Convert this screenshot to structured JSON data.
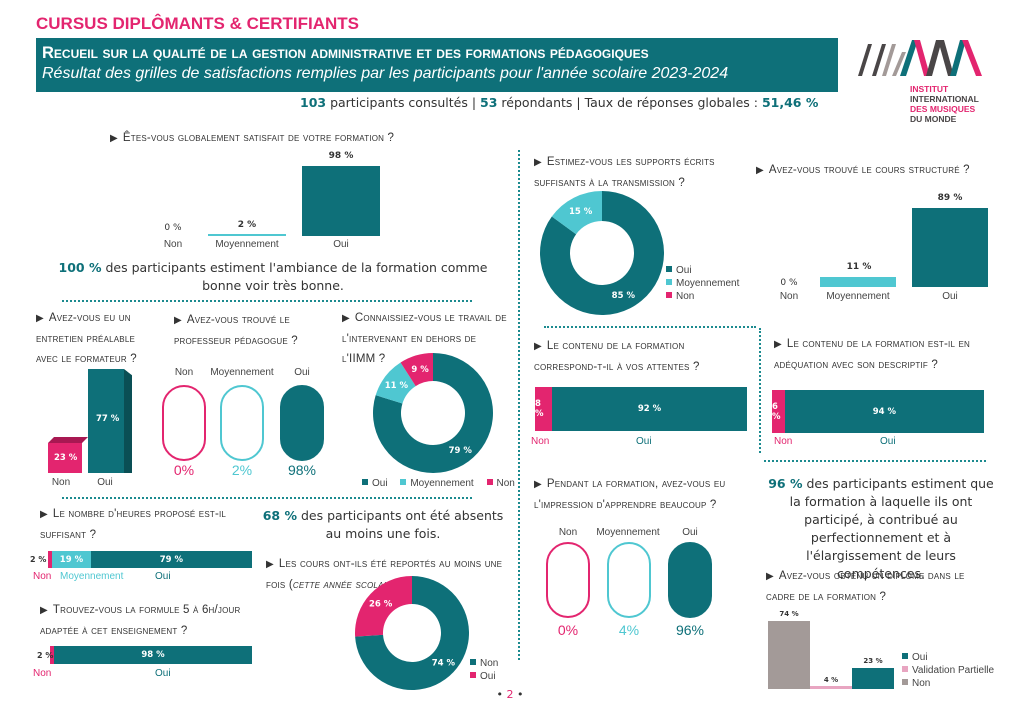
{
  "colors": {
    "teal": "#0e7079",
    "light_teal": "#4fc7d1",
    "pink": "#e3256f",
    "grey": "#a39a98",
    "light_pink": "#e8a5c1",
    "dark_grey": "#4a4647"
  },
  "header": {
    "section_title": "CURSUS DIPLÔMANTS & CERTIFIANTS",
    "banner_title": "Recueil sur la qualité de la gestion administrative et des formations pédagogiques",
    "banner_subtitle": "Résultat des grilles de satisfactions remplies par les participants pour l'année scolaire 2023-2024",
    "summary": {
      "consulted_count": "103",
      "consulted_text": " participants consultés | ",
      "respondents_count": "53",
      "respondents_text": " répondants | Taux de réponses globales : ",
      "rate": "51,46 %"
    }
  },
  "logo": {
    "line1": "INSTITUT",
    "line2": "INTERNATIONAL",
    "line3": "DES MUSIQUES",
    "line4": "DU MONDE"
  },
  "stats": {
    "ambiance_value": "100 %",
    "ambiance_text": " des participants estiment l'ambiance de la formation comme bonne voir très bonne.",
    "absents_value": "68 %",
    "absents_text": " des participants ont été absents au moins une fois.",
    "perfection_value": "96 %",
    "perfection_text": " des participants estiment que la formation à laquelle ils ont participé, à contribué au perfectionnement et à l'élargissement de leurs compétences."
  },
  "page_number": "2",
  "chart_data": [
    {
      "id": "satisfaction",
      "type": "bar",
      "title": "Êtes-vous globalement satisfait de votre formation ?",
      "categories": [
        "Non",
        "Moyennement",
        "Oui"
      ],
      "values": [
        0,
        2,
        98
      ],
      "labels": [
        "0 %",
        "2 %",
        "98 %"
      ],
      "unit": "%"
    },
    {
      "id": "supports",
      "type": "pie",
      "title": "Estimez-vous les supports écrits suffisants à la transmission ?",
      "categories": [
        "Oui",
        "Moyennement",
        "Non"
      ],
      "values": [
        85,
        15,
        0
      ],
      "labels": [
        "85 %",
        "15 %",
        ""
      ],
      "legend": [
        "Oui",
        "Moyennement",
        "Non"
      ],
      "legend_position": "right"
    },
    {
      "id": "structure",
      "type": "bar",
      "title": "Avez-vous trouvé le cours structuré ?",
      "categories": [
        "Non",
        "Moyennement",
        "Oui"
      ],
      "values": [
        0,
        11,
        89
      ],
      "labels": [
        "0 %",
        "11 %",
        "89 %"
      ]
    },
    {
      "id": "entretien",
      "type": "bar",
      "title": "Avez-vous eu un entretien préalable avec le formateur ?",
      "categories": [
        "Non",
        "Oui"
      ],
      "values": [
        23,
        77
      ],
      "labels": [
        "23 %",
        "77 %"
      ]
    },
    {
      "id": "professeur",
      "type": "bar",
      "title": "Avez-vous trouvé le professeur pédagogue ?",
      "categories": [
        "Non",
        "Moyennement",
        "Oui"
      ],
      "values": [
        0,
        2,
        98
      ],
      "labels": [
        "0%",
        "2%",
        "98%"
      ]
    },
    {
      "id": "intervenant",
      "type": "pie",
      "title": "Connaissiez-vous le travail de l'intervenant en dehors de l'IIMM ?",
      "categories": [
        "Oui",
        "Moyennement",
        "Non"
      ],
      "values": [
        79,
        11,
        9
      ],
      "labels": [
        "79 %",
        "11 %",
        "9 %"
      ],
      "legend": [
        "Oui",
        "Moyennement",
        "Non"
      ],
      "legend_position": "bottom"
    },
    {
      "id": "contenu_attentes",
      "type": "bar",
      "title": "Le contenu de la formation correspond-t-il à vos attentes ?",
      "categories": [
        "Non",
        "Oui"
      ],
      "values": [
        8,
        92
      ],
      "labels": [
        "8 %",
        "92 %"
      ],
      "orientation": "horizontal-stacked"
    },
    {
      "id": "contenu_descriptif",
      "type": "bar",
      "title": "Le contenu de la formation est-il en adéquation avec son descriptif ?",
      "categories": [
        "Non",
        "Oui"
      ],
      "values": [
        6,
        94
      ],
      "labels": [
        "6 %",
        "94 %"
      ],
      "orientation": "horizontal-stacked"
    },
    {
      "id": "heures",
      "type": "bar",
      "title": "Le nombre d'heures proposé est-il suffisant ?",
      "categories": [
        "Non",
        "Moyennement",
        "Oui"
      ],
      "values": [
        2,
        19,
        79
      ],
      "labels": [
        "2 %",
        "19 %",
        "79 %"
      ],
      "orientation": "horizontal-stacked"
    },
    {
      "id": "formule",
      "type": "bar",
      "title": "Trouvez-vous la formule 5 à 6h/jour adaptée à cet enseignement ?",
      "categories": [
        "Non",
        "Oui"
      ],
      "values": [
        2,
        98
      ],
      "labels": [
        "2 %",
        "98 %"
      ],
      "orientation": "horizontal-stacked"
    },
    {
      "id": "reportes",
      "type": "pie",
      "title": "Les cours ont-ils été reportés au moins une fois (cette année scolaire) ?",
      "title_main": "Les cours ont-ils été reportés au moins une fois (",
      "title_italic": "cette année scolaire",
      "title_end": ") ?",
      "categories": [
        "Non",
        "Oui"
      ],
      "values": [
        74,
        26
      ],
      "labels": [
        "74 %",
        "26 %"
      ],
      "legend": [
        "Non",
        "Oui"
      ],
      "legend_position": "right"
    },
    {
      "id": "apprendre",
      "type": "bar",
      "title": "Pendant la formation, avez-vous eu l'impression d'apprendre beaucoup ?",
      "categories": [
        "Non",
        "Moyennement",
        "Oui"
      ],
      "values": [
        0,
        4,
        96
      ],
      "labels": [
        "0%",
        "4%",
        "96%"
      ]
    },
    {
      "id": "diplome",
      "type": "bar",
      "title": "Avez-vous obtenu un diplôme dans le cadre de la formation ?",
      "categories": [
        "Non",
        "Validation Partielle",
        "Oui"
      ],
      "values": [
        74,
        4,
        23
      ],
      "labels": [
        "74 %",
        "4 %",
        "23 %"
      ],
      "legend": [
        "Oui",
        "Validation Partielle",
        "Non"
      ],
      "legend_position": "right"
    }
  ]
}
